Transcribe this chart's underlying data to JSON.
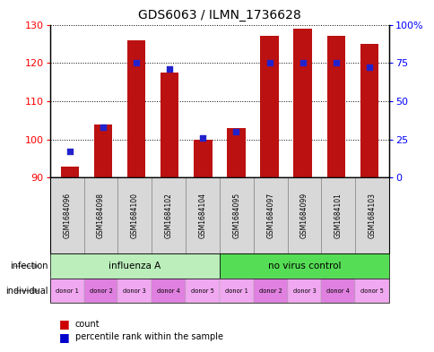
{
  "title": "GDS6063 / ILMN_1736628",
  "samples": [
    "GSM1684096",
    "GSM1684098",
    "GSM1684100",
    "GSM1684102",
    "GSM1684104",
    "GSM1684095",
    "GSM1684097",
    "GSM1684099",
    "GSM1684101",
    "GSM1684103"
  ],
  "count_values": [
    93,
    104,
    126,
    117.5,
    100,
    103,
    127,
    129,
    127,
    125
  ],
  "percentile_values": [
    17,
    33,
    75,
    71,
    26,
    30,
    75,
    75,
    75,
    72
  ],
  "ylim_left": [
    90,
    130
  ],
  "ylim_right": [
    0,
    100
  ],
  "yticks_left": [
    90,
    100,
    110,
    120,
    130
  ],
  "yticks_right": [
    0,
    25,
    50,
    75,
    100
  ],
  "ytick_labels_right": [
    "0",
    "25",
    "50",
    "75",
    "100%"
  ],
  "infection_groups": [
    {
      "label": "influenza A",
      "start": 0,
      "end": 5,
      "color": "#BBEEBB"
    },
    {
      "label": "no virus control",
      "start": 5,
      "end": 10,
      "color": "#55DD55"
    }
  ],
  "individual_labels": [
    "donor 1",
    "donor 2",
    "donor 3",
    "donor 4",
    "donor 5",
    "donor 1",
    "donor 2",
    "donor 3",
    "donor 4",
    "donor 5"
  ],
  "individual_colors": [
    "#F0A8F0",
    "#E080E0",
    "#F0A8F0",
    "#E080E0",
    "#F0A8F0",
    "#F0A8F0",
    "#E080E0",
    "#F0A8F0",
    "#E080E0",
    "#F0A8F0"
  ],
  "bar_color": "#BB1111",
  "dot_color": "#2222CC",
  "grid_color": "#000000",
  "sample_bg_color": "#D8D8D8",
  "legend_count_color": "#CC0000",
  "legend_percentile_color": "#0000CC",
  "bar_bottom": 90,
  "bar_width": 0.55
}
